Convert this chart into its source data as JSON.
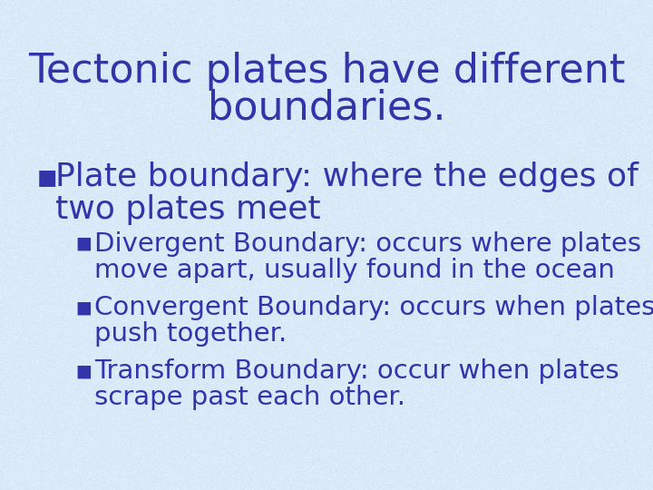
{
  "title_line1": "Tectonic plates have different",
  "title_line2": "boundaries.",
  "title_fontsize": 32,
  "text_color": "#3333AA",
  "background_color": "#DAEAF8",
  "bullet1_text_line1": "Plate boundary: where the edges of",
  "bullet1_text_line2": "two plates meet",
  "bullet1_fontsize": 26,
  "sub_bullets": [
    [
      "Divergent Boundary: occurs where plates",
      "move apart, usually found in the ocean"
    ],
    [
      "Convergent Boundary: occurs when plates",
      "push together."
    ],
    [
      "Transform Boundary: occur when plates",
      "scrape past each other."
    ]
  ],
  "sub_bullet_fontsize": 21,
  "font_family": "Comic Sans MS",
  "fig_width": 7.2,
  "fig_height": 5.4,
  "dpi": 100
}
